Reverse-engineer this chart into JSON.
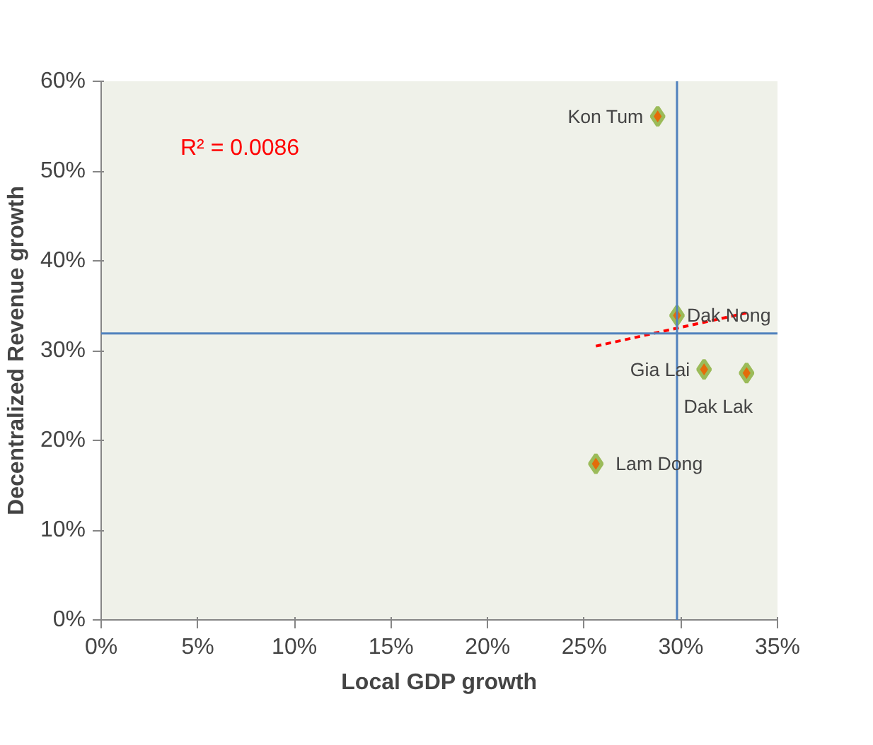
{
  "chart_data": {
    "type": "scatter",
    "xlabel": "Local GDP growth",
    "ylabel": "Decentralized Revenue growth",
    "x": [
      28.8,
      29.8,
      31.2,
      33.4,
      25.6
    ],
    "series": [
      {
        "color": "#e46c0a",
        "values": [
          56.1,
          33.9,
          27.9,
          27.5,
          17.4
        ],
        "marker": "diamond"
      },
      {
        "type": "line",
        "color": "#ff0000",
        "x": [
          25.6,
          33.4
        ],
        "values": [
          30.5,
          34.2
        ],
        "line_style": "dashed",
        "marker": "none"
      }
    ],
    "annotations": [
      {
        "text": "Kon Tum",
        "x": 28.8,
        "y": 56.1
      },
      {
        "text": "Dak Nong",
        "x": 29.8,
        "y": 33.9
      },
      {
        "text": "Gia Lai",
        "x": 31.2,
        "y": 27.9
      },
      {
        "text": "Dak Lak",
        "x": 33.4,
        "y": 27.5
      },
      {
        "text": "Lam Dong",
        "x": 25.6,
        "y": 17.4
      },
      "R² = 0.0086"
    ],
    "ref_lines": [
      {
        "axis": "x",
        "value": 29.8,
        "color": "#4f81bd"
      },
      {
        "axis": "y",
        "value": 31.9,
        "color": "#4f81bd"
      }
    ],
    "xlim": [
      0,
      35
    ],
    "ylim": [
      0,
      60
    ],
    "xticks": [
      {
        "value": 0,
        "label": "0%"
      },
      {
        "value": 5,
        "label": "5%"
      },
      {
        "value": 10,
        "label": "10%"
      },
      {
        "value": 15,
        "label": "15%"
      },
      {
        "value": 20,
        "label": "20%"
      },
      {
        "value": 25,
        "label": "25%"
      },
      {
        "value": 30,
        "label": "30%"
      },
      {
        "value": 35,
        "label": "35%"
      }
    ],
    "yticks": [
      {
        "value": 0,
        "label": "0%"
      },
      {
        "value": 10,
        "label": "10%"
      },
      {
        "value": 20,
        "label": "20%"
      },
      {
        "value": 30,
        "label": "30%"
      },
      {
        "value": 40,
        "label": "40%"
      },
      {
        "value": 50,
        "label": "50%"
      },
      {
        "value": 60,
        "label": "60%"
      }
    ],
    "grid": false
  }
}
